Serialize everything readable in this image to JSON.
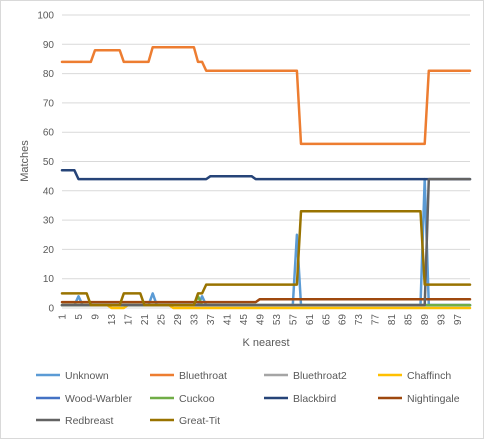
{
  "chart_data": {
    "type": "line",
    "title": "",
    "xlabel": "K nearest",
    "ylabel": "Matches",
    "xlim": [
      1,
      100
    ],
    "ylim": [
      0,
      100
    ],
    "y_ticks": [
      0,
      10,
      20,
      30,
      40,
      50,
      60,
      70,
      80,
      90,
      100
    ],
    "x_ticks": [
      1,
      5,
      9,
      13,
      17,
      21,
      25,
      29,
      33,
      37,
      41,
      45,
      49,
      53,
      57,
      61,
      65,
      69,
      73,
      77,
      81,
      85,
      89,
      93,
      97
    ],
    "grid": "horizontal",
    "legend_position": "bottom",
    "series": [
      {
        "name": "Unknown",
        "color": "#5b9bd5",
        "segments": [
          [
            1,
            1
          ],
          [
            4,
            1
          ],
          [
            5,
            4
          ],
          [
            6,
            1
          ],
          [
            22,
            1
          ],
          [
            23,
            5
          ],
          [
            24,
            1
          ],
          [
            34,
            1
          ],
          [
            35,
            4
          ],
          [
            36,
            1
          ],
          [
            57,
            1
          ],
          [
            58,
            25
          ],
          [
            59,
            1
          ],
          [
            88,
            1
          ],
          [
            89,
            44
          ],
          [
            90,
            1
          ],
          [
            100,
            1
          ]
        ]
      },
      {
        "name": "Bluethroat",
        "color": "#ed7d31",
        "segments": [
          [
            1,
            84
          ],
          [
            8,
            84
          ],
          [
            9,
            88
          ],
          [
            15,
            88
          ],
          [
            16,
            84
          ],
          [
            22,
            84
          ],
          [
            23,
            89
          ],
          [
            33,
            89
          ],
          [
            34,
            84
          ],
          [
            35,
            84
          ],
          [
            36,
            81
          ],
          [
            58,
            81
          ],
          [
            59,
            56
          ],
          [
            89,
            56
          ],
          [
            90,
            81
          ],
          [
            100,
            81
          ]
        ]
      },
      {
        "name": "Bluethroat2",
        "color": "#a5a5a5",
        "segments": [
          [
            1,
            1
          ],
          [
            100,
            1
          ]
        ]
      },
      {
        "name": "Chaffinch",
        "color": "#ffc000",
        "segments": [
          [
            1,
            1
          ],
          [
            12,
            1
          ],
          [
            13,
            0
          ],
          [
            16,
            0
          ],
          [
            17,
            1
          ],
          [
            27,
            1
          ],
          [
            28,
            0
          ],
          [
            100,
            0
          ]
        ]
      },
      {
        "name": "Wood-Warbler",
        "color": "#4472c4",
        "segments": [
          [
            1,
            1
          ],
          [
            100,
            1
          ]
        ]
      },
      {
        "name": "Cuckoo",
        "color": "#70ad47",
        "segments": [
          [
            1,
            1
          ],
          [
            33,
            1
          ],
          [
            34,
            4
          ],
          [
            35,
            1
          ],
          [
            100,
            1
          ]
        ]
      },
      {
        "name": "Blackbird",
        "color": "#264478",
        "segments": [
          [
            1,
            47
          ],
          [
            4,
            47
          ],
          [
            5,
            44
          ],
          [
            36,
            44
          ],
          [
            37,
            45
          ],
          [
            47,
            45
          ],
          [
            48,
            44
          ],
          [
            100,
            44
          ]
        ]
      },
      {
        "name": "Nightingale",
        "color": "#9e480e",
        "segments": [
          [
            1,
            2
          ],
          [
            48,
            2
          ],
          [
            49,
            3
          ],
          [
            100,
            3
          ]
        ]
      },
      {
        "name": "Redbreast",
        "color": "#636363",
        "segments": [
          [
            1,
            1
          ],
          [
            89,
            1
          ],
          [
            90,
            44
          ],
          [
            100,
            44
          ]
        ]
      },
      {
        "name": "Great-Tit",
        "color": "#997300",
        "segments": [
          [
            1,
            5
          ],
          [
            7,
            5
          ],
          [
            8,
            1
          ],
          [
            15,
            1
          ],
          [
            16,
            5
          ],
          [
            20,
            5
          ],
          [
            21,
            1
          ],
          [
            33,
            1
          ],
          [
            34,
            5
          ],
          [
            35,
            5
          ],
          [
            36,
            8
          ],
          [
            58,
            8
          ],
          [
            59,
            33
          ],
          [
            88,
            33
          ],
          [
            89,
            8
          ],
          [
            100,
            8
          ]
        ]
      }
    ]
  }
}
